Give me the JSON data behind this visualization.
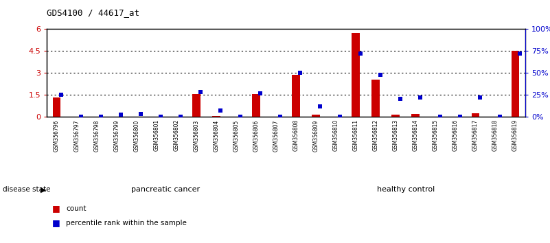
{
  "title": "GDS4100 / 44617_at",
  "samples": [
    "GSM356796",
    "GSM356797",
    "GSM356798",
    "GSM356799",
    "GSM356800",
    "GSM356801",
    "GSM356802",
    "GSM356803",
    "GSM356804",
    "GSM356805",
    "GSM356806",
    "GSM356807",
    "GSM356808",
    "GSM356809",
    "GSM356810",
    "GSM356811",
    "GSM356812",
    "GSM356813",
    "GSM356814",
    "GSM356815",
    "GSM356816",
    "GSM356817",
    "GSM356818",
    "GSM356819"
  ],
  "count_values": [
    1.3,
    0.0,
    0.0,
    0.0,
    0.0,
    0.0,
    0.0,
    1.55,
    0.05,
    0.0,
    1.55,
    0.0,
    2.85,
    0.15,
    0.0,
    5.75,
    2.55,
    0.15,
    0.2,
    0.0,
    0.0,
    0.25,
    0.0,
    4.5
  ],
  "percentile_values": [
    25,
    0,
    0,
    2,
    3,
    0,
    0,
    28,
    7,
    0,
    27,
    0,
    50,
    12,
    0,
    72,
    48,
    20,
    22,
    0,
    0,
    22,
    0,
    72
  ],
  "ylim_left": [
    0,
    6
  ],
  "ylim_right": [
    0,
    100
  ],
  "yticks_left": [
    0,
    1.5,
    3.0,
    4.5,
    6.0
  ],
  "ytick_labels_left": [
    "0",
    "1.5",
    "3",
    "4.5",
    "6"
  ],
  "yticks_right": [
    0,
    25,
    50,
    75,
    100
  ],
  "ytick_labels_right": [
    "0%",
    "25%",
    "50%",
    "75%",
    "100%"
  ],
  "bar_color": "#CC0000",
  "dot_color": "#0000CC",
  "bg_color": "#FFFFFF",
  "panel_color": "#C8C8C8",
  "green_color": "#90EE90",
  "dark_green_border": "#228B22",
  "disease_state_label": "disease state",
  "legend_count": "count",
  "legend_pct": "percentile rank within the sample",
  "pc_group": {
    "label": "pancreatic cancer",
    "start": 0,
    "end": 11
  },
  "hc_group": {
    "label": "healthy control",
    "start": 12,
    "end": 23
  }
}
